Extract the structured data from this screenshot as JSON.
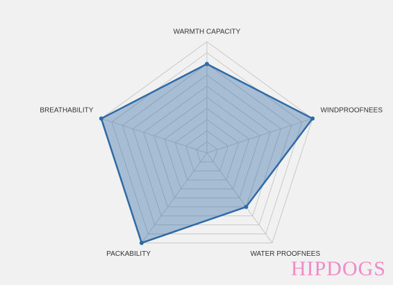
{
  "chart_data": {
    "type": "radar",
    "categories": [
      "WARMTH CAPACITY",
      "WINDPROOFNEES",
      "WATER PROOFNEES",
      "PACKABILITY",
      "BREATHABILITY"
    ],
    "values": [
      8,
      10,
      6,
      10,
      10
    ],
    "color": "#2f6aa6",
    "rlim": [
      0,
      10
    ],
    "rticks": [
      1,
      2,
      3,
      4,
      5,
      6,
      7,
      8,
      9,
      10
    ],
    "grid": true,
    "watermark": "HIPDOGS"
  }
}
